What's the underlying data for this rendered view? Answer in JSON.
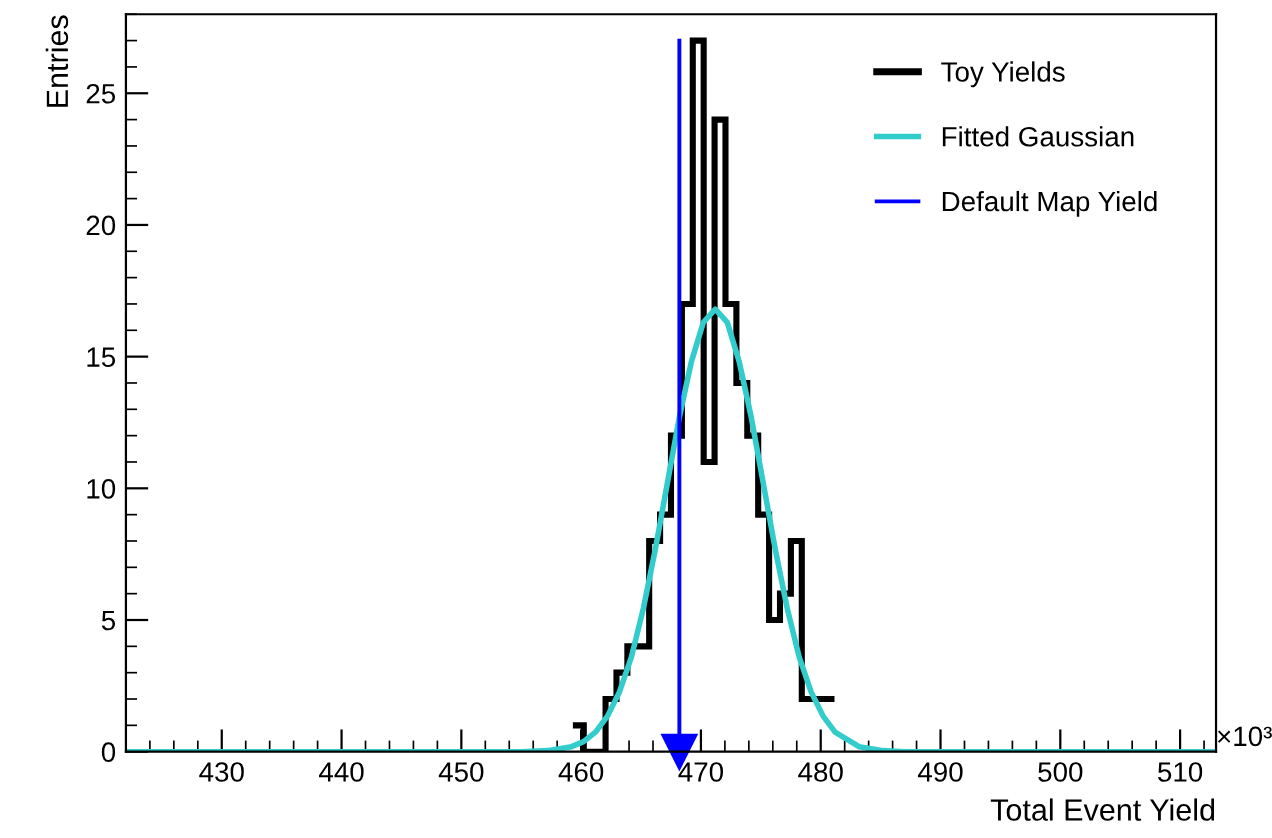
{
  "chart_data": {
    "type": "histogram",
    "xlabel": "Total Event Yield",
    "ylabel": "Entries",
    "bins": [
      459.31,
      460.22,
      461.13,
      462.04,
      462.95,
      463.86,
      464.77,
      465.68,
      466.59,
      467.5,
      468.41,
      469.32,
      470.23,
      471.14,
      472.05,
      472.96,
      473.87,
      474.78,
      475.69,
      476.6,
      477.51,
      478.42,
      479.33,
      480.24,
      481.15
    ],
    "series": [
      {
        "name": "Toy Yields",
        "color": "#000000",
        "values": [
          1,
          0,
          0,
          2,
          3,
          4,
          4,
          8,
          9,
          12,
          17,
          27,
          11,
          24,
          17,
          14,
          12,
          9,
          5,
          6,
          8,
          2,
          2,
          2
        ]
      },
      {
        "name": "Fitted Gaussian",
        "type": "line",
        "color": "#33cccc",
        "x": [
          422,
          455,
          457.2,
          459.2,
          460.2,
          461.2,
          462.2,
          463.2,
          464.2,
          465.2,
          466.2,
          467.2,
          468.2,
          469.2,
          470.2,
          471.2,
          472.2,
          473.2,
          474.2,
          475.2,
          476.2,
          477.2,
          478.2,
          479.2,
          480.2,
          481.2,
          483.2,
          485.2,
          487,
          513
        ],
        "values": [
          0,
          0,
          0.04,
          0.19,
          0.38,
          0.74,
          1.35,
          2.27,
          3.6,
          5.45,
          7.7,
          10.2,
          12.7,
          14.8,
          16.3,
          16.8,
          16.3,
          14.8,
          12.7,
          10.2,
          7.7,
          5.45,
          3.6,
          2.27,
          1.35,
          0.74,
          0.19,
          0.04,
          0,
          0
        ]
      },
      {
        "name": "Default Map Yield",
        "type": "line",
        "color": "#0000ff",
        "x": [
          468.2,
          468.2
        ],
        "values": [
          27,
          0
        ]
      }
    ],
    "annotations": [
      "×10³"
    ],
    "xlim": [
      422,
      513
    ],
    "ylim": [
      0,
      28
    ],
    "xticks": [
      430,
      440,
      450,
      460,
      470,
      480,
      490,
      500,
      510
    ],
    "yticks": [
      0,
      5,
      10,
      15,
      20,
      25
    ],
    "grid": false,
    "legend": "top right"
  }
}
